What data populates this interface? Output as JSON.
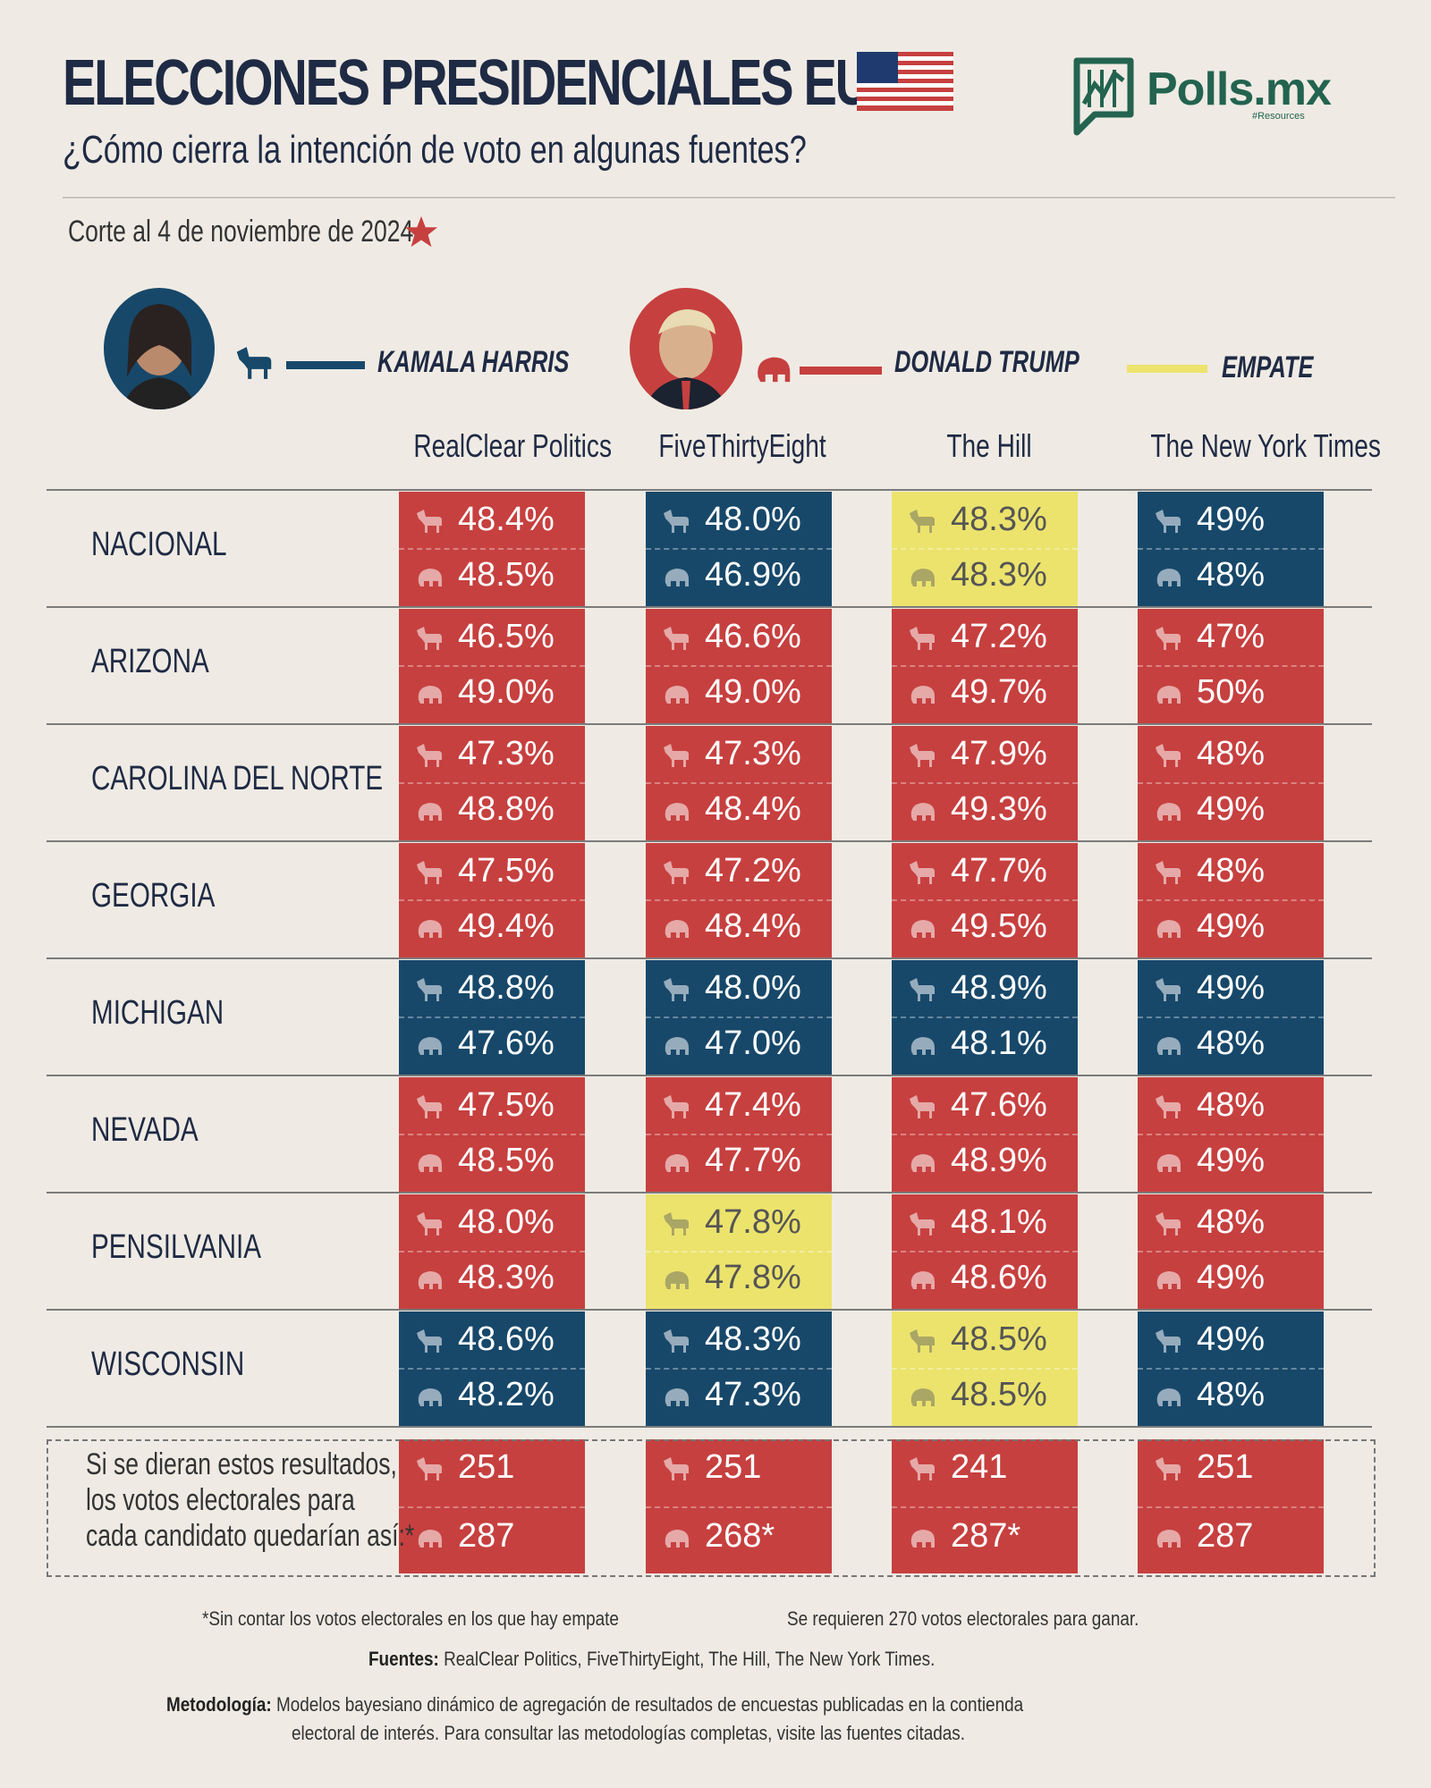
{
  "header": {
    "title": "ELECCIONES PRESIDENCIALES EUA",
    "subtitle": "¿Cómo cierra la intención de voto en algunas fuentes?",
    "cutoff": "Corte al 4 de noviembre de 2024",
    "logo_text": "Polls.mx",
    "logo_tagline": "#Resources"
  },
  "legend": {
    "harris": "KAMALA HARRIS",
    "trump": "DONALD TRUMP",
    "tie": "EMPATE"
  },
  "colors": {
    "dem": "#17486a",
    "rep": "#c6403f",
    "tie": "#ece36d",
    "bg": "#efebe4"
  },
  "icons": {
    "dem": "donkey-icon",
    "rep": "elephant-icon",
    "star": "star-icon",
    "flag": "us-flag-icon"
  },
  "chart_data": {
    "type": "table",
    "title": "ELECCIONES PRESIDENCIALES EUA",
    "sources": [
      "RealClear Politics",
      "FiveThirtyEight",
      "The Hill",
      "The New York Times"
    ],
    "rows": [
      {
        "state": "NACIONAL",
        "cells": [
          {
            "winner": "rep",
            "harris": "48.4%",
            "trump": "48.5%"
          },
          {
            "winner": "dem",
            "harris": "48.0%",
            "trump": "46.9%"
          },
          {
            "winner": "tie",
            "harris": "48.3%",
            "trump": "48.3%"
          },
          {
            "winner": "dem",
            "harris": "49%",
            "trump": "48%"
          }
        ]
      },
      {
        "state": "ARIZONA",
        "cells": [
          {
            "winner": "rep",
            "harris": "46.5%",
            "trump": "49.0%"
          },
          {
            "winner": "rep",
            "harris": "46.6%",
            "trump": "49.0%"
          },
          {
            "winner": "rep",
            "harris": "47.2%",
            "trump": "49.7%"
          },
          {
            "winner": "rep",
            "harris": "47%",
            "trump": "50%"
          }
        ]
      },
      {
        "state": "CAROLINA DEL NORTE",
        "cells": [
          {
            "winner": "rep",
            "harris": "47.3%",
            "trump": "48.8%"
          },
          {
            "winner": "rep",
            "harris": "47.3%",
            "trump": "48.4%"
          },
          {
            "winner": "rep",
            "harris": "47.9%",
            "trump": "49.3%"
          },
          {
            "winner": "rep",
            "harris": "48%",
            "trump": "49%"
          }
        ]
      },
      {
        "state": "GEORGIA",
        "cells": [
          {
            "winner": "rep",
            "harris": "47.5%",
            "trump": "49.4%"
          },
          {
            "winner": "rep",
            "harris": "47.2%",
            "trump": "48.4%"
          },
          {
            "winner": "rep",
            "harris": "47.7%",
            "trump": "49.5%"
          },
          {
            "winner": "rep",
            "harris": "48%",
            "trump": "49%"
          }
        ]
      },
      {
        "state": "MICHIGAN",
        "cells": [
          {
            "winner": "dem",
            "harris": "48.8%",
            "trump": "47.6%"
          },
          {
            "winner": "dem",
            "harris": "48.0%",
            "trump": "47.0%"
          },
          {
            "winner": "dem",
            "harris": "48.9%",
            "trump": "48.1%"
          },
          {
            "winner": "dem",
            "harris": "49%",
            "trump": "48%"
          }
        ]
      },
      {
        "state": "NEVADA",
        "cells": [
          {
            "winner": "rep",
            "harris": "47.5%",
            "trump": "48.5%"
          },
          {
            "winner": "rep",
            "harris": "47.4%",
            "trump": "47.7%"
          },
          {
            "winner": "rep",
            "harris": "47.6%",
            "trump": "48.9%"
          },
          {
            "winner": "rep",
            "harris": "48%",
            "trump": "49%"
          }
        ]
      },
      {
        "state": "PENSILVANIA",
        "cells": [
          {
            "winner": "rep",
            "harris": "48.0%",
            "trump": "48.3%"
          },
          {
            "winner": "tie",
            "harris": "47.8%",
            "trump": "47.8%"
          },
          {
            "winner": "rep",
            "harris": "48.1%",
            "trump": "48.6%"
          },
          {
            "winner": "rep",
            "harris": "48%",
            "trump": "49%"
          }
        ]
      },
      {
        "state": "WISCONSIN",
        "cells": [
          {
            "winner": "dem",
            "harris": "48.6%",
            "trump": "48.2%"
          },
          {
            "winner": "dem",
            "harris": "48.3%",
            "trump": "47.3%"
          },
          {
            "winner": "tie",
            "harris": "48.5%",
            "trump": "48.5%"
          },
          {
            "winner": "dem",
            "harris": "49%",
            "trump": "48%"
          }
        ]
      }
    ],
    "electoral": {
      "label_lines": [
        "Si se dieran estos resultados,",
        "los votos electorales para",
        "cada candidato quedarían así:*"
      ],
      "cells": [
        {
          "harris": "251",
          "trump": "287"
        },
        {
          "harris": "251",
          "trump": "268*"
        },
        {
          "harris": "241",
          "trump": "287*"
        },
        {
          "harris": "251",
          "trump": "287"
        }
      ]
    }
  },
  "footer": {
    "note_tie": "*Sin contar los votos electorales en los que hay empate",
    "note_270": "Se requieren 270 votos electorales para ganar.",
    "sources_label": "Fuentes:",
    "sources_text": "RealClear Politics, FiveThirtyEight, The Hill, The New York Times.",
    "method_label": "Metodología:",
    "method_line1": "Modelos bayesiano dinámico de agregación de resultados de encuestas publicadas en la contienda",
    "method_line2": "electoral de interés. Para consultar las metodologías completas, visite las fuentes citadas."
  }
}
